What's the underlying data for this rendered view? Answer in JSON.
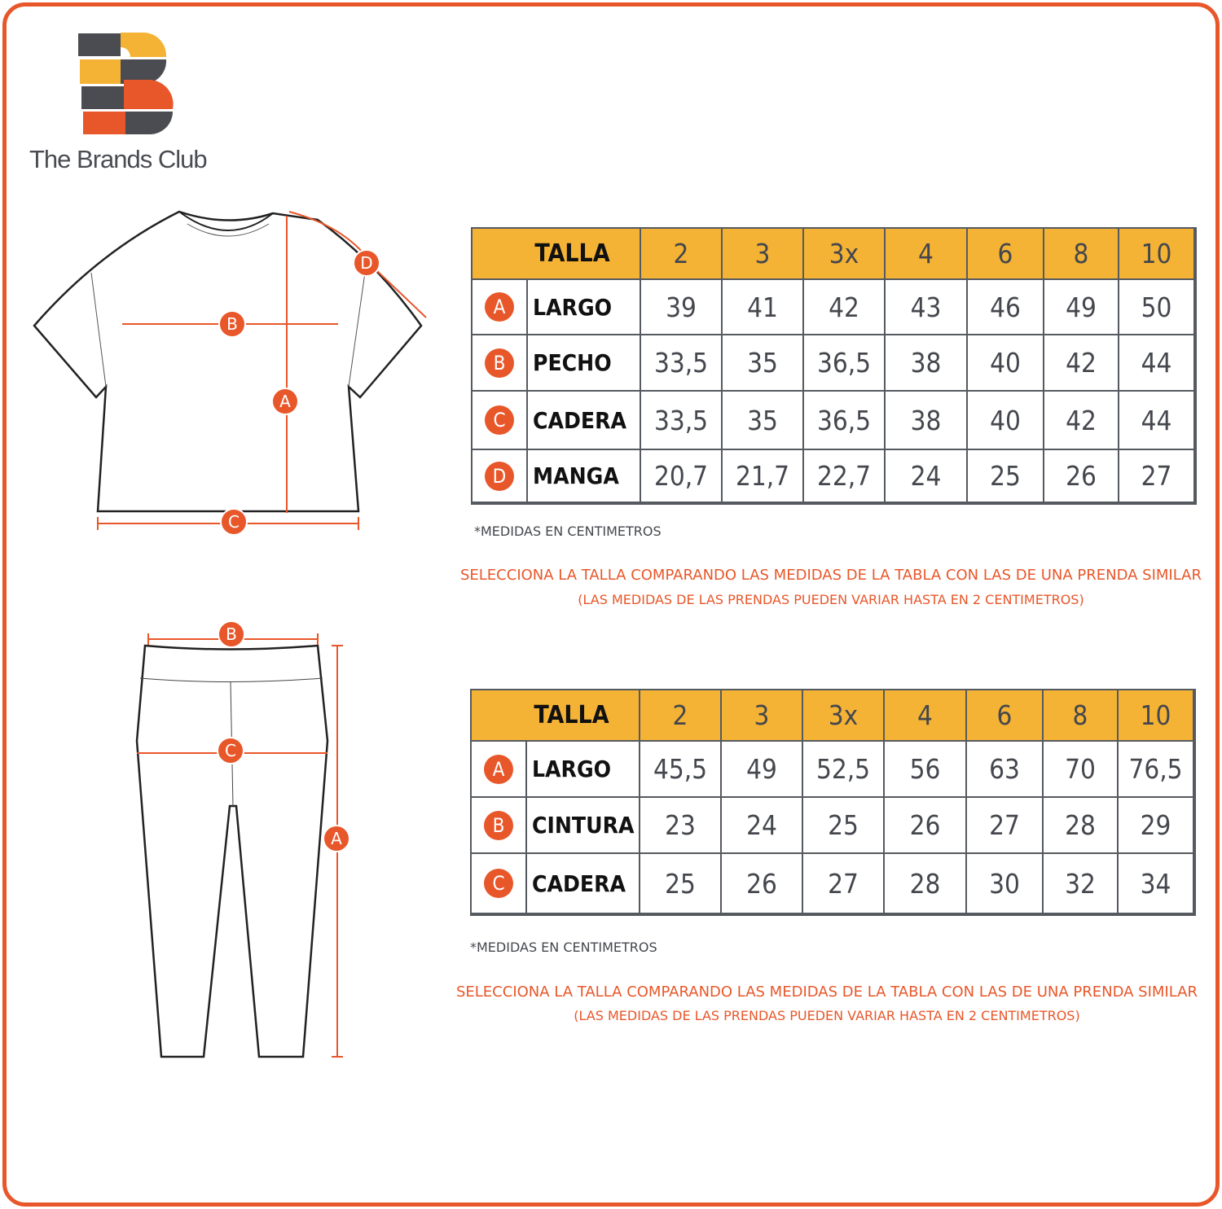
{
  "brand": {
    "name": "The Brands Club",
    "colors": {
      "orange": "#e8572a",
      "yellow": "#f5b335",
      "gray": "#4a4c52"
    }
  },
  "shirt_diagram": {
    "labels": [
      "A",
      "B",
      "C",
      "D"
    ]
  },
  "pants_diagram": {
    "labels": [
      "A",
      "B",
      "C"
    ]
  },
  "table1": {
    "header": "TALLA",
    "sizes": [
      "2",
      "3",
      "3x",
      "4",
      "6",
      "8",
      "10"
    ],
    "rows": [
      {
        "badge": "A",
        "label": "LARGO",
        "values": [
          "39",
          "41",
          "42",
          "43",
          "46",
          "49",
          "50"
        ]
      },
      {
        "badge": "B",
        "label": "PECHO",
        "values": [
          "33,5",
          "35",
          "36,5",
          "38",
          "40",
          "42",
          "44"
        ]
      },
      {
        "badge": "C",
        "label": "CADERA",
        "values": [
          "33,5",
          "35",
          "36,5",
          "38",
          "40",
          "42",
          "44"
        ]
      },
      {
        "badge": "D",
        "label": "MANGA",
        "values": [
          "20,7",
          "21,7",
          "22,7",
          "24",
          "25",
          "26",
          "27"
        ]
      }
    ],
    "note": "*MEDIDAS EN CENTIMETROS",
    "advice": "SELECCIONA LA TALLA COMPARANDO LAS MEDIDAS DE LA TABLA CON LAS DE UNA PRENDA SIMILAR",
    "advice2": "(LAS MEDIDAS DE LAS PRENDAS PUEDEN VARIAR HASTA EN 2 CENTIMETROS)"
  },
  "table2": {
    "header": "TALLA",
    "sizes": [
      "2",
      "3",
      "3x",
      "4",
      "6",
      "8",
      "10"
    ],
    "rows": [
      {
        "badge": "A",
        "label": "LARGO",
        "values": [
          "45,5",
          "49",
          "52,5",
          "56",
          "63",
          "70",
          "76,5"
        ]
      },
      {
        "badge": "B",
        "label": "CINTURA",
        "values": [
          "23",
          "24",
          "25",
          "26",
          "27",
          "28",
          "29"
        ]
      },
      {
        "badge": "C",
        "label": "CADERA",
        "values": [
          "25",
          "26",
          "27",
          "28",
          "30",
          "32",
          "34"
        ]
      }
    ],
    "note": "*MEDIDAS EN CENTIMETROS",
    "advice": "SELECCIONA LA TALLA COMPARANDO LAS MEDIDAS DE LA TABLA CON LAS DE UNA PRENDA SIMILAR",
    "advice2": "(LAS MEDIDAS DE LAS PRENDAS PUEDEN VARIAR HASTA EN 2 CENTIMETROS)"
  }
}
